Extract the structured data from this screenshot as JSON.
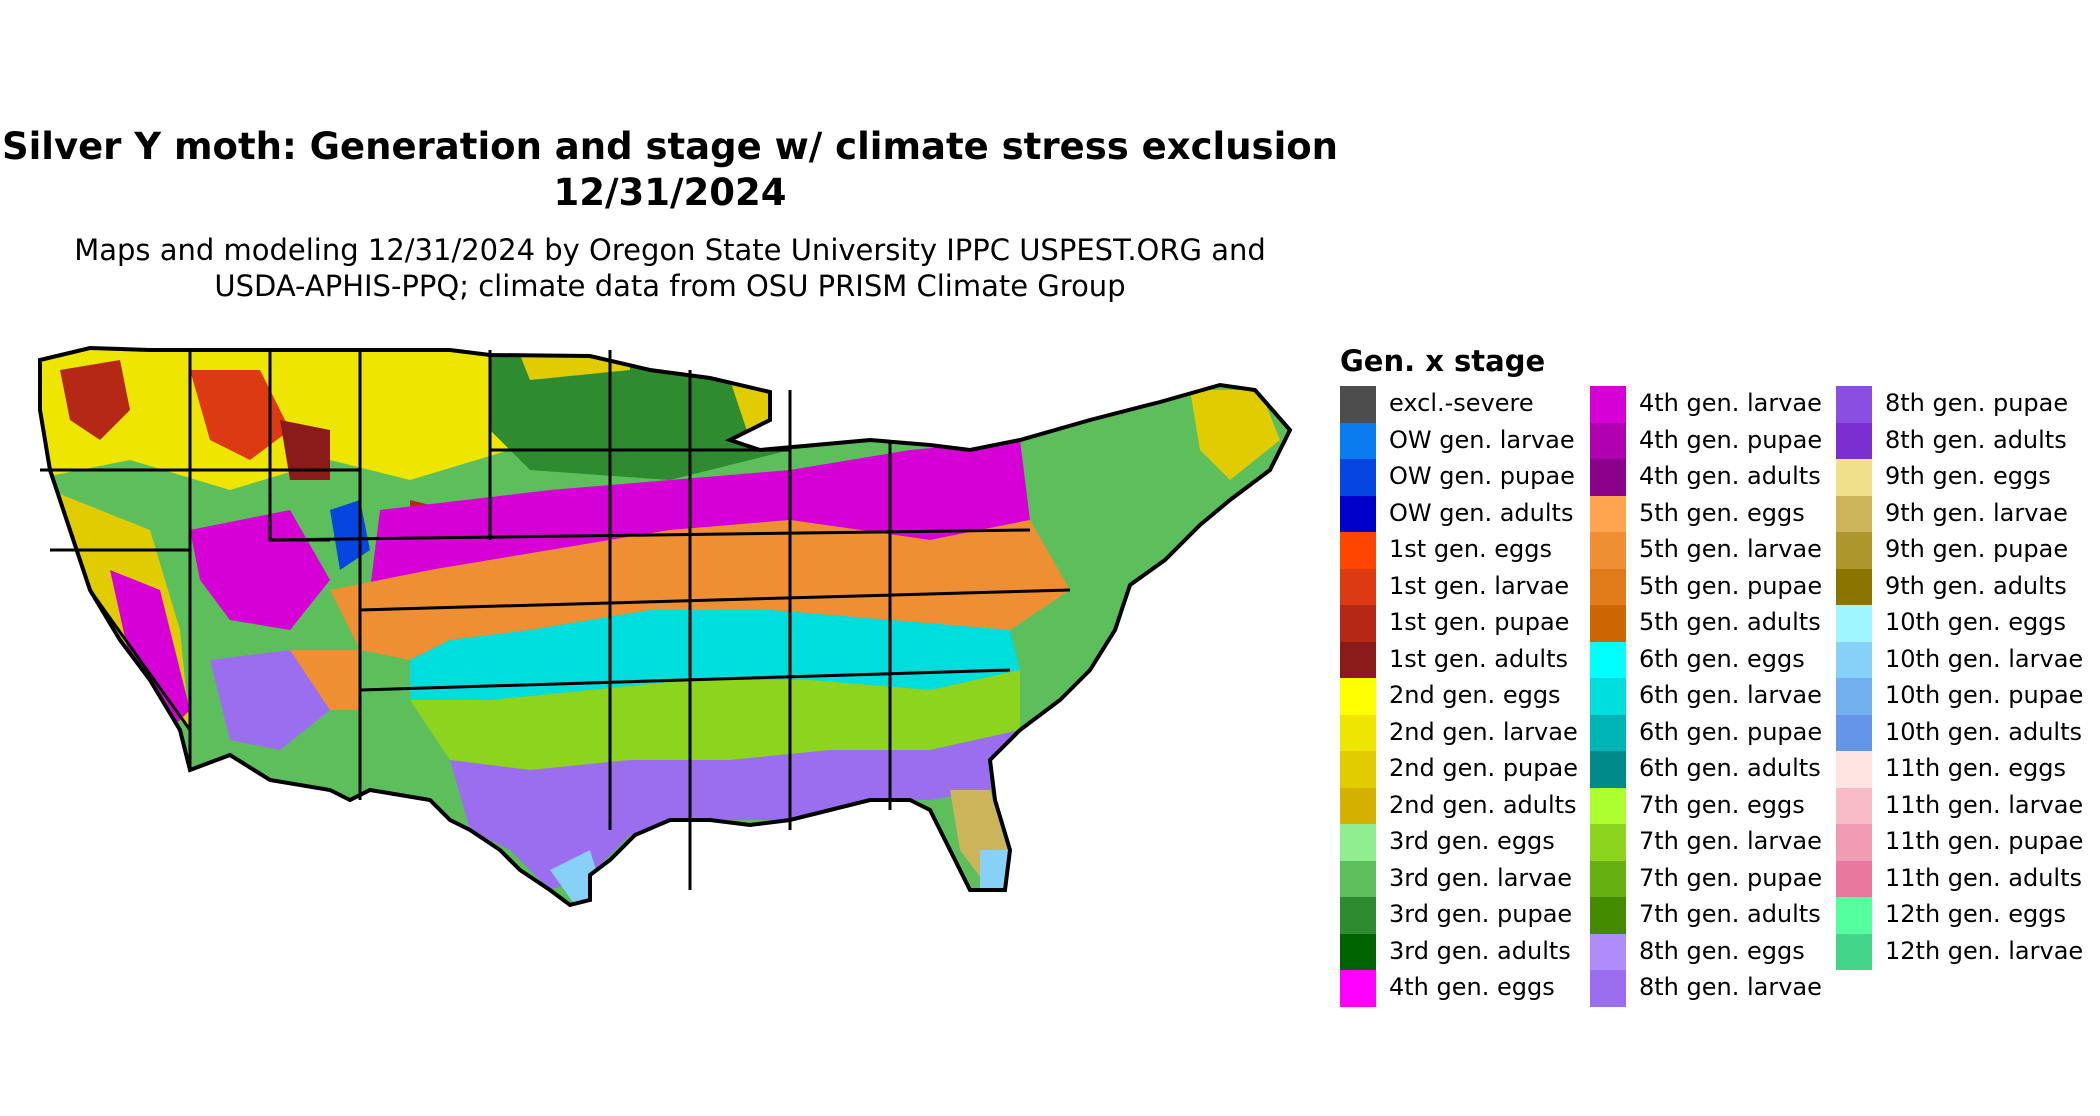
{
  "title_line1": "Silver Y moth: Generation and stage w/ climate stress exclusion",
  "title_line2": "12/31/2024",
  "subtitle_line1": "Maps and modeling 12/31/2024 by Oregon State University IPPC USPEST.ORG and",
  "subtitle_line2": "USDA-APHIS-PPQ; climate data from OSU PRISM Climate Group",
  "legend": {
    "title": "Gen. x stage",
    "items": [
      {
        "label": "excl.-severe",
        "color": "#4d4d4d"
      },
      {
        "label": "OW gen. larvae",
        "color": "#0a7cf0"
      },
      {
        "label": "OW gen. pupae",
        "color": "#0645e0"
      },
      {
        "label": "OW gen. adults",
        "color": "#0000c8"
      },
      {
        "label": "1st gen. eggs",
        "color": "#ff4500"
      },
      {
        "label": "1st gen. larvae",
        "color": "#dc3a12"
      },
      {
        "label": "1st gen. pupae",
        "color": "#b52815"
      },
      {
        "label": "1st gen. adults",
        "color": "#8b1a1a"
      },
      {
        "label": "2nd gen. eggs",
        "color": "#ffff00"
      },
      {
        "label": "2nd gen. larvae",
        "color": "#eee600"
      },
      {
        "label": "2nd gen. pupae",
        "color": "#e0cc00"
      },
      {
        "label": "2nd gen. adults",
        "color": "#d4b000"
      },
      {
        "label": "3rd gen. eggs",
        "color": "#90ee90"
      },
      {
        "label": "3rd gen. larvae",
        "color": "#5cbf5c"
      },
      {
        "label": "3rd gen. pupae",
        "color": "#2e8b30"
      },
      {
        "label": "3rd gen. adults",
        "color": "#006400"
      },
      {
        "label": "4th gen. eggs",
        "color": "#ff00ff"
      },
      {
        "label": "4th gen. larvae",
        "color": "#d600d6"
      },
      {
        "label": "4th gen. pupae",
        "color": "#b000b0"
      },
      {
        "label": "4th gen. adults",
        "color": "#8b008b"
      },
      {
        "label": "5th gen. eggs",
        "color": "#ffa54f"
      },
      {
        "label": "5th gen. larvae",
        "color": "#ee8f33"
      },
      {
        "label": "5th gen. pupae",
        "color": "#e07c1a"
      },
      {
        "label": "5th gen. adults",
        "color": "#cd6600"
      },
      {
        "label": "6th gen. eggs",
        "color": "#00ffff"
      },
      {
        "label": "6th gen. larvae",
        "color": "#00dddd"
      },
      {
        "label": "6th gen. pupae",
        "color": "#00b5b5"
      },
      {
        "label": "6th gen. adults",
        "color": "#008b8b"
      },
      {
        "label": "7th gen. eggs",
        "color": "#adff2f"
      },
      {
        "label": "7th gen. larvae",
        "color": "#8cd41e"
      },
      {
        "label": "7th gen. pupae",
        "color": "#66b012"
      },
      {
        "label": "7th gen. adults",
        "color": "#458b00"
      },
      {
        "label": "8th gen. eggs",
        "color": "#b08cfa"
      },
      {
        "label": "8th gen. larvae",
        "color": "#9b6ef0"
      },
      {
        "label": "8th gen. pupae",
        "color": "#8a4ee0"
      },
      {
        "label": "8th gen. adults",
        "color": "#7b2fd0"
      },
      {
        "label": "9th gen. eggs",
        "color": "#f0e08c"
      },
      {
        "label": "9th gen. larvae",
        "color": "#ccb45a"
      },
      {
        "label": "9th gen. pupae",
        "color": "#ad962c"
      },
      {
        "label": "9th gen. adults",
        "color": "#8b7500"
      },
      {
        "label": "10th gen. eggs",
        "color": "#9ff6ff"
      },
      {
        "label": "10th gen. larvae",
        "color": "#87d0f8"
      },
      {
        "label": "10th gen. pupae",
        "color": "#72b0f0"
      },
      {
        "label": "10th gen. adults",
        "color": "#6495e6"
      },
      {
        "label": "11th gen. eggs",
        "color": "#ffe4e1"
      },
      {
        "label": "11th gen. larvae",
        "color": "#f8bcc8"
      },
      {
        "label": "11th gen. pupae",
        "color": "#f09cb4"
      },
      {
        "label": "11th gen. adults",
        "color": "#e8789e"
      },
      {
        "label": "12th gen. eggs",
        "color": "#54ff9f"
      },
      {
        "label": "12th gen. larvae",
        "color": "#43d68a"
      }
    ]
  }
}
